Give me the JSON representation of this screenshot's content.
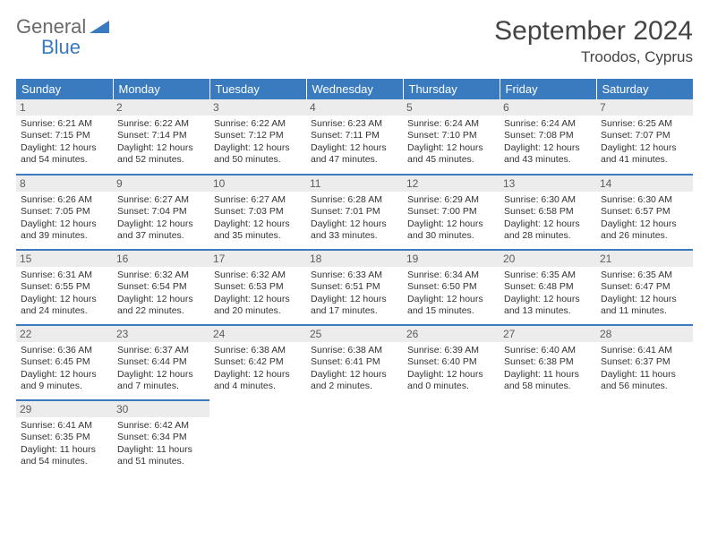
{
  "logo": {
    "line1": "General",
    "line2": "Blue"
  },
  "title": "September 2024",
  "location": "Troodos, Cyprus",
  "colors": {
    "headerBg": "#3a7bbf",
    "headerText": "#ffffff",
    "dayBg": "#ececec",
    "borderTop": "#3a7bbf"
  },
  "weekdays": [
    "Sunday",
    "Monday",
    "Tuesday",
    "Wednesday",
    "Thursday",
    "Friday",
    "Saturday"
  ],
  "weeks": [
    [
      {
        "n": "1",
        "sr": "6:21 AM",
        "ss": "7:15 PM",
        "dl": "12 hours and 54 minutes."
      },
      {
        "n": "2",
        "sr": "6:22 AM",
        "ss": "7:14 PM",
        "dl": "12 hours and 52 minutes."
      },
      {
        "n": "3",
        "sr": "6:22 AM",
        "ss": "7:12 PM",
        "dl": "12 hours and 50 minutes."
      },
      {
        "n": "4",
        "sr": "6:23 AM",
        "ss": "7:11 PM",
        "dl": "12 hours and 47 minutes."
      },
      {
        "n": "5",
        "sr": "6:24 AM",
        "ss": "7:10 PM",
        "dl": "12 hours and 45 minutes."
      },
      {
        "n": "6",
        "sr": "6:24 AM",
        "ss": "7:08 PM",
        "dl": "12 hours and 43 minutes."
      },
      {
        "n": "7",
        "sr": "6:25 AM",
        "ss": "7:07 PM",
        "dl": "12 hours and 41 minutes."
      }
    ],
    [
      {
        "n": "8",
        "sr": "6:26 AM",
        "ss": "7:05 PM",
        "dl": "12 hours and 39 minutes."
      },
      {
        "n": "9",
        "sr": "6:27 AM",
        "ss": "7:04 PM",
        "dl": "12 hours and 37 minutes."
      },
      {
        "n": "10",
        "sr": "6:27 AM",
        "ss": "7:03 PM",
        "dl": "12 hours and 35 minutes."
      },
      {
        "n": "11",
        "sr": "6:28 AM",
        "ss": "7:01 PM",
        "dl": "12 hours and 33 minutes."
      },
      {
        "n": "12",
        "sr": "6:29 AM",
        "ss": "7:00 PM",
        "dl": "12 hours and 30 minutes."
      },
      {
        "n": "13",
        "sr": "6:30 AM",
        "ss": "6:58 PM",
        "dl": "12 hours and 28 minutes."
      },
      {
        "n": "14",
        "sr": "6:30 AM",
        "ss": "6:57 PM",
        "dl": "12 hours and 26 minutes."
      }
    ],
    [
      {
        "n": "15",
        "sr": "6:31 AM",
        "ss": "6:55 PM",
        "dl": "12 hours and 24 minutes."
      },
      {
        "n": "16",
        "sr": "6:32 AM",
        "ss": "6:54 PM",
        "dl": "12 hours and 22 minutes."
      },
      {
        "n": "17",
        "sr": "6:32 AM",
        "ss": "6:53 PM",
        "dl": "12 hours and 20 minutes."
      },
      {
        "n": "18",
        "sr": "6:33 AM",
        "ss": "6:51 PM",
        "dl": "12 hours and 17 minutes."
      },
      {
        "n": "19",
        "sr": "6:34 AM",
        "ss": "6:50 PM",
        "dl": "12 hours and 15 minutes."
      },
      {
        "n": "20",
        "sr": "6:35 AM",
        "ss": "6:48 PM",
        "dl": "12 hours and 13 minutes."
      },
      {
        "n": "21",
        "sr": "6:35 AM",
        "ss": "6:47 PM",
        "dl": "12 hours and 11 minutes."
      }
    ],
    [
      {
        "n": "22",
        "sr": "6:36 AM",
        "ss": "6:45 PM",
        "dl": "12 hours and 9 minutes."
      },
      {
        "n": "23",
        "sr": "6:37 AM",
        "ss": "6:44 PM",
        "dl": "12 hours and 7 minutes."
      },
      {
        "n": "24",
        "sr": "6:38 AM",
        "ss": "6:42 PM",
        "dl": "12 hours and 4 minutes."
      },
      {
        "n": "25",
        "sr": "6:38 AM",
        "ss": "6:41 PM",
        "dl": "12 hours and 2 minutes."
      },
      {
        "n": "26",
        "sr": "6:39 AM",
        "ss": "6:40 PM",
        "dl": "12 hours and 0 minutes."
      },
      {
        "n": "27",
        "sr": "6:40 AM",
        "ss": "6:38 PM",
        "dl": "11 hours and 58 minutes."
      },
      {
        "n": "28",
        "sr": "6:41 AM",
        "ss": "6:37 PM",
        "dl": "11 hours and 56 minutes."
      }
    ],
    [
      {
        "n": "29",
        "sr": "6:41 AM",
        "ss": "6:35 PM",
        "dl": "11 hours and 54 minutes."
      },
      {
        "n": "30",
        "sr": "6:42 AM",
        "ss": "6:34 PM",
        "dl": "11 hours and 51 minutes."
      },
      null,
      null,
      null,
      null,
      null
    ]
  ]
}
